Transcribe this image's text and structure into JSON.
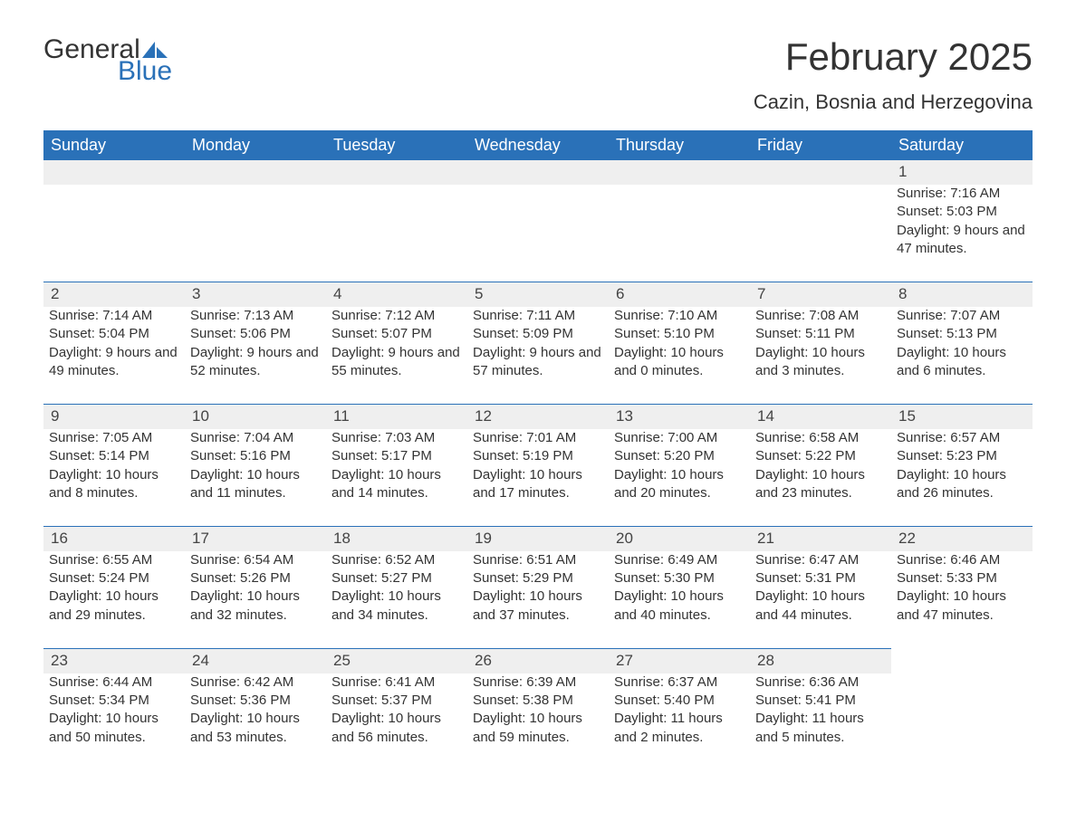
{
  "logo": {
    "word1": "General",
    "word2": "Blue"
  },
  "title": "February 2025",
  "location": "Cazin, Bosnia and Herzegovina",
  "colors": {
    "header_bg": "#2a71b8",
    "header_text": "#ffffff",
    "daynum_bg": "#efefef",
    "row_border": "#2a71b8",
    "body_text": "#333333",
    "logo_blue": "#2a71b8",
    "logo_dark": "#343434"
  },
  "weekdays": [
    "Sunday",
    "Monday",
    "Tuesday",
    "Wednesday",
    "Thursday",
    "Friday",
    "Saturday"
  ],
  "weeks": [
    [
      null,
      null,
      null,
      null,
      null,
      null,
      {
        "n": "1",
        "sunrise": "Sunrise: 7:16 AM",
        "sunset": "Sunset: 5:03 PM",
        "daylight": "Daylight: 9 hours and 47 minutes."
      }
    ],
    [
      {
        "n": "2",
        "sunrise": "Sunrise: 7:14 AM",
        "sunset": "Sunset: 5:04 PM",
        "daylight": "Daylight: 9 hours and 49 minutes."
      },
      {
        "n": "3",
        "sunrise": "Sunrise: 7:13 AM",
        "sunset": "Sunset: 5:06 PM",
        "daylight": "Daylight: 9 hours and 52 minutes."
      },
      {
        "n": "4",
        "sunrise": "Sunrise: 7:12 AM",
        "sunset": "Sunset: 5:07 PM",
        "daylight": "Daylight: 9 hours and 55 minutes."
      },
      {
        "n": "5",
        "sunrise": "Sunrise: 7:11 AM",
        "sunset": "Sunset: 5:09 PM",
        "daylight": "Daylight: 9 hours and 57 minutes."
      },
      {
        "n": "6",
        "sunrise": "Sunrise: 7:10 AM",
        "sunset": "Sunset: 5:10 PM",
        "daylight": "Daylight: 10 hours and 0 minutes."
      },
      {
        "n": "7",
        "sunrise": "Sunrise: 7:08 AM",
        "sunset": "Sunset: 5:11 PM",
        "daylight": "Daylight: 10 hours and 3 minutes."
      },
      {
        "n": "8",
        "sunrise": "Sunrise: 7:07 AM",
        "sunset": "Sunset: 5:13 PM",
        "daylight": "Daylight: 10 hours and 6 minutes."
      }
    ],
    [
      {
        "n": "9",
        "sunrise": "Sunrise: 7:05 AM",
        "sunset": "Sunset: 5:14 PM",
        "daylight": "Daylight: 10 hours and 8 minutes."
      },
      {
        "n": "10",
        "sunrise": "Sunrise: 7:04 AM",
        "sunset": "Sunset: 5:16 PM",
        "daylight": "Daylight: 10 hours and 11 minutes."
      },
      {
        "n": "11",
        "sunrise": "Sunrise: 7:03 AM",
        "sunset": "Sunset: 5:17 PM",
        "daylight": "Daylight: 10 hours and 14 minutes."
      },
      {
        "n": "12",
        "sunrise": "Sunrise: 7:01 AM",
        "sunset": "Sunset: 5:19 PM",
        "daylight": "Daylight: 10 hours and 17 minutes."
      },
      {
        "n": "13",
        "sunrise": "Sunrise: 7:00 AM",
        "sunset": "Sunset: 5:20 PM",
        "daylight": "Daylight: 10 hours and 20 minutes."
      },
      {
        "n": "14",
        "sunrise": "Sunrise: 6:58 AM",
        "sunset": "Sunset: 5:22 PM",
        "daylight": "Daylight: 10 hours and 23 minutes."
      },
      {
        "n": "15",
        "sunrise": "Sunrise: 6:57 AM",
        "sunset": "Sunset: 5:23 PM",
        "daylight": "Daylight: 10 hours and 26 minutes."
      }
    ],
    [
      {
        "n": "16",
        "sunrise": "Sunrise: 6:55 AM",
        "sunset": "Sunset: 5:24 PM",
        "daylight": "Daylight: 10 hours and 29 minutes."
      },
      {
        "n": "17",
        "sunrise": "Sunrise: 6:54 AM",
        "sunset": "Sunset: 5:26 PM",
        "daylight": "Daylight: 10 hours and 32 minutes."
      },
      {
        "n": "18",
        "sunrise": "Sunrise: 6:52 AM",
        "sunset": "Sunset: 5:27 PM",
        "daylight": "Daylight: 10 hours and 34 minutes."
      },
      {
        "n": "19",
        "sunrise": "Sunrise: 6:51 AM",
        "sunset": "Sunset: 5:29 PM",
        "daylight": "Daylight: 10 hours and 37 minutes."
      },
      {
        "n": "20",
        "sunrise": "Sunrise: 6:49 AM",
        "sunset": "Sunset: 5:30 PM",
        "daylight": "Daylight: 10 hours and 40 minutes."
      },
      {
        "n": "21",
        "sunrise": "Sunrise: 6:47 AM",
        "sunset": "Sunset: 5:31 PM",
        "daylight": "Daylight: 10 hours and 44 minutes."
      },
      {
        "n": "22",
        "sunrise": "Sunrise: 6:46 AM",
        "sunset": "Sunset: 5:33 PM",
        "daylight": "Daylight: 10 hours and 47 minutes."
      }
    ],
    [
      {
        "n": "23",
        "sunrise": "Sunrise: 6:44 AM",
        "sunset": "Sunset: 5:34 PM",
        "daylight": "Daylight: 10 hours and 50 minutes."
      },
      {
        "n": "24",
        "sunrise": "Sunrise: 6:42 AM",
        "sunset": "Sunset: 5:36 PM",
        "daylight": "Daylight: 10 hours and 53 minutes."
      },
      {
        "n": "25",
        "sunrise": "Sunrise: 6:41 AM",
        "sunset": "Sunset: 5:37 PM",
        "daylight": "Daylight: 10 hours and 56 minutes."
      },
      {
        "n": "26",
        "sunrise": "Sunrise: 6:39 AM",
        "sunset": "Sunset: 5:38 PM",
        "daylight": "Daylight: 10 hours and 59 minutes."
      },
      {
        "n": "27",
        "sunrise": "Sunrise: 6:37 AM",
        "sunset": "Sunset: 5:40 PM",
        "daylight": "Daylight: 11 hours and 2 minutes."
      },
      {
        "n": "28",
        "sunrise": "Sunrise: 6:36 AM",
        "sunset": "Sunset: 5:41 PM",
        "daylight": "Daylight: 11 hours and 5 minutes."
      },
      null
    ]
  ]
}
